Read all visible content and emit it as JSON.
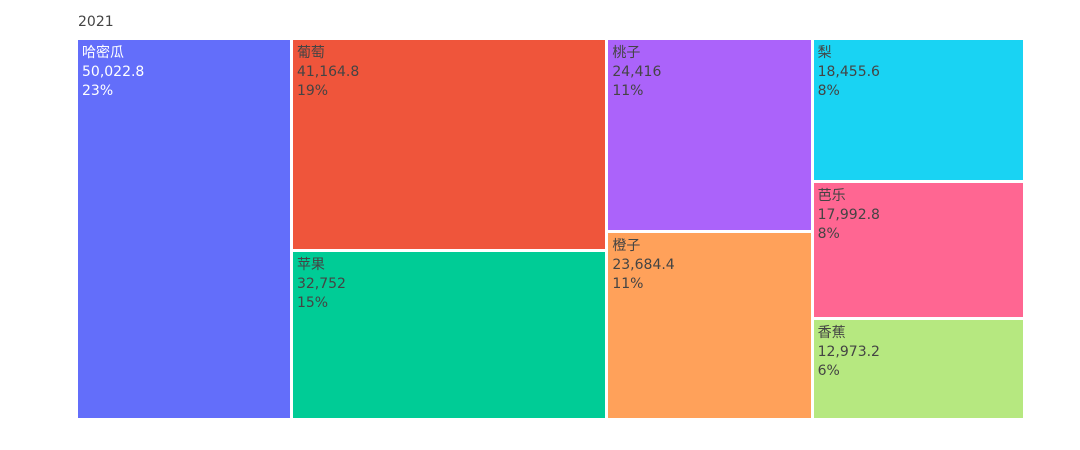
{
  "chart_data": {
    "type": "treemap",
    "root": "2021",
    "items": [
      {
        "name": "哈密瓜",
        "value": "50,022.8",
        "value_num": 50022.8,
        "percent": "23%",
        "color": "#636efa",
        "text_color": "#ffffff"
      },
      {
        "name": "葡萄",
        "value": "41,164.8",
        "value_num": 41164.8,
        "percent": "19%",
        "color": "#ef553b",
        "text_color": "#444444"
      },
      {
        "name": "苹果",
        "value": "32,752",
        "value_num": 32752,
        "percent": "15%",
        "color": "#00cc96",
        "text_color": "#444444"
      },
      {
        "name": "桃子",
        "value": "24,416",
        "value_num": 24416,
        "percent": "11%",
        "color": "#ab63fa",
        "text_color": "#444444"
      },
      {
        "name": "橙子",
        "value": "23,684.4",
        "value_num": 23684.4,
        "percent": "11%",
        "color": "#ffa15a",
        "text_color": "#444444"
      },
      {
        "name": "梨",
        "value": "18,455.6",
        "value_num": 18455.6,
        "percent": "8%",
        "color": "#19d3f3",
        "text_color": "#444444"
      },
      {
        "name": "芭乐",
        "value": "17,992.8",
        "value_num": 17992.8,
        "percent": "8%",
        "color": "#ff6692",
        "text_color": "#444444"
      },
      {
        "name": "香蕉",
        "value": "12,973.2",
        "value_num": 12973.2,
        "percent": "6%",
        "color": "#b6e880",
        "text_color": "#444444"
      }
    ]
  }
}
